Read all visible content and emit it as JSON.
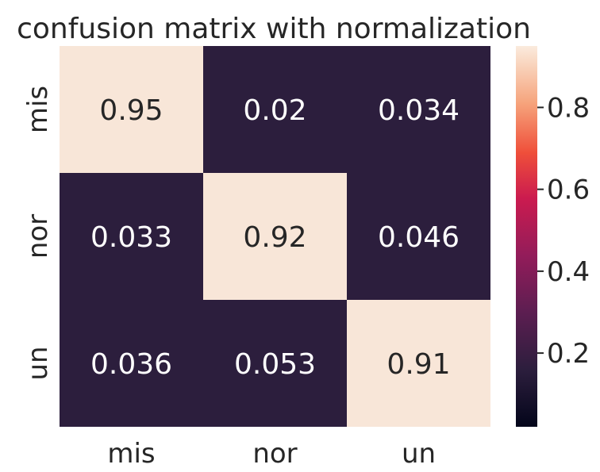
{
  "chart_data": {
    "type": "heatmap",
    "title": "confusion matrix with normalization",
    "row_labels": [
      "mis",
      "nor",
      "un"
    ],
    "col_labels": [
      "mis",
      "nor",
      "un"
    ],
    "values": [
      [
        0.95,
        0.02,
        0.034
      ],
      [
        0.033,
        0.92,
        0.046
      ],
      [
        0.036,
        0.053,
        0.91
      ]
    ],
    "value_labels": [
      [
        "0.95",
        "0.02",
        "0.034"
      ],
      [
        "0.033",
        "0.92",
        "0.046"
      ],
      [
        "0.036",
        "0.053",
        "0.91"
      ]
    ],
    "colorbar": {
      "range": [
        0.02,
        0.95
      ],
      "ticks": [
        0.2,
        0.4,
        0.6,
        0.8
      ],
      "tick_labels": [
        "0.2",
        "0.4",
        "0.6",
        "0.8"
      ],
      "colormap": "rocket"
    },
    "xlabel": "",
    "ylabel": "",
    "grid": false
  },
  "colors": {
    "dark_cell": "#2c1e3d",
    "light_cell": "#f8e6d8",
    "dark_text": "#262626",
    "light_text": "#ffffff"
  }
}
